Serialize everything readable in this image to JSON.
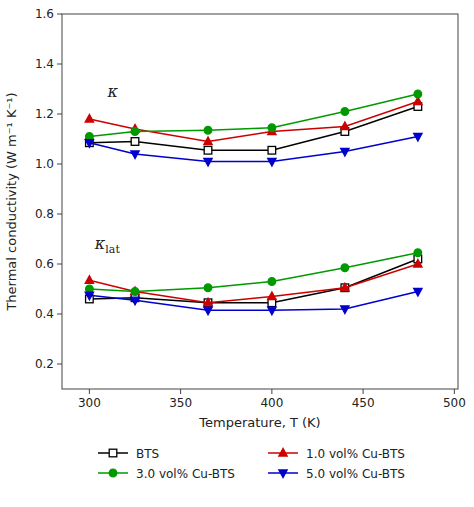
{
  "chart_data": {
    "type": "line",
    "x_label": "Temperature, T (K)",
    "y_label": "Thermal conductivity (W m⁻¹ K⁻¹)",
    "x": [
      300,
      325,
      365,
      400,
      440,
      480
    ],
    "series": [
      {
        "name": "BTS",
        "color": "#000000",
        "marker": "open-square",
        "values": [
          1.085,
          1.09,
          1.055,
          1.055,
          1.13,
          1.23
        ]
      },
      {
        "name": "1.0 vol% Cu-BTS",
        "color": "#cc0000",
        "marker": "triangle-up",
        "values": [
          1.18,
          1.14,
          1.09,
          1.13,
          1.15,
          1.25
        ]
      },
      {
        "name": "3.0 vol% Cu-BTS",
        "color": "#009900",
        "marker": "circle",
        "values": [
          1.11,
          1.13,
          1.135,
          1.145,
          1.21,
          1.28
        ]
      },
      {
        "name": "5.0 vol% Cu-BTS",
        "color": "#0000cc",
        "marker": "triangle-down",
        "values": [
          1.085,
          1.04,
          1.01,
          1.01,
          1.05,
          1.11
        ]
      },
      {
        "color": "#000000",
        "marker": "open-square",
        "values": [
          0.46,
          0.465,
          0.445,
          0.445,
          0.505,
          0.62
        ]
      },
      {
        "color": "#cc0000",
        "marker": "triangle-up",
        "values": [
          0.535,
          0.49,
          0.445,
          0.47,
          0.505,
          0.6
        ]
      },
      {
        "color": "#009900",
        "marker": "circle",
        "values": [
          0.5,
          0.49,
          0.505,
          0.53,
          0.585,
          0.645
        ]
      },
      {
        "color": "#0000cc",
        "marker": "triangle-down",
        "values": [
          0.475,
          0.455,
          0.415,
          0.415,
          0.42,
          0.49
        ]
      }
    ],
    "annotations": [
      {
        "text": "κ",
        "x": 310,
        "y": 1.27
      },
      {
        "text": "κ",
        "subscript": "lat",
        "x": 303,
        "y": 0.66
      }
    ],
    "xlim": [
      285,
      502
    ],
    "ylim": [
      0.1,
      1.6
    ],
    "xticks": [
      300,
      350,
      400,
      450,
      500
    ],
    "yticks": [
      0.2,
      0.4,
      0.6,
      0.8,
      {
        "value": 1.0,
        "label": "1.0"
      },
      1.2,
      1.4,
      1.6
    ],
    "grid": false,
    "legend": "bottom"
  }
}
